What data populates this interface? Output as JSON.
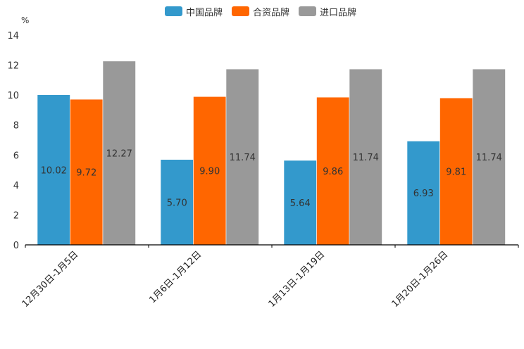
{
  "chart_data": {
    "type": "bar",
    "title": "",
    "ylabel": "%",
    "xlabel": "",
    "ylim": [
      0,
      14
    ],
    "yticks": [
      0,
      2,
      4,
      6,
      8,
      10,
      12,
      14
    ],
    "ytick_labels": [
      "0",
      "2",
      "4",
      "6",
      "8",
      "10",
      "12",
      "14"
    ],
    "categories": [
      "12月30日-1月5日",
      "1月6日-1月12日",
      "1月13日-1月19日",
      "1月20日-1月26日"
    ],
    "series": [
      {
        "name": "中国品牌",
        "color": "#3399cc",
        "values": [
          10.02,
          5.7,
          5.64,
          6.93
        ],
        "labels": [
          "10.02",
          "5.70",
          "5.64",
          "6.93"
        ]
      },
      {
        "name": "合资品牌",
        "color": "#ff6600",
        "values": [
          9.72,
          9.9,
          9.86,
          9.81
        ],
        "labels": [
          "9.72",
          "9.90",
          "9.86",
          "9.81"
        ]
      },
      {
        "name": "进口品牌",
        "color": "#999999",
        "values": [
          12.27,
          11.74,
          11.74,
          11.74
        ],
        "labels": [
          "12.27",
          "11.74",
          "11.74",
          "11.74"
        ]
      }
    ],
    "legend_position": "top-center",
    "grid": false
  }
}
